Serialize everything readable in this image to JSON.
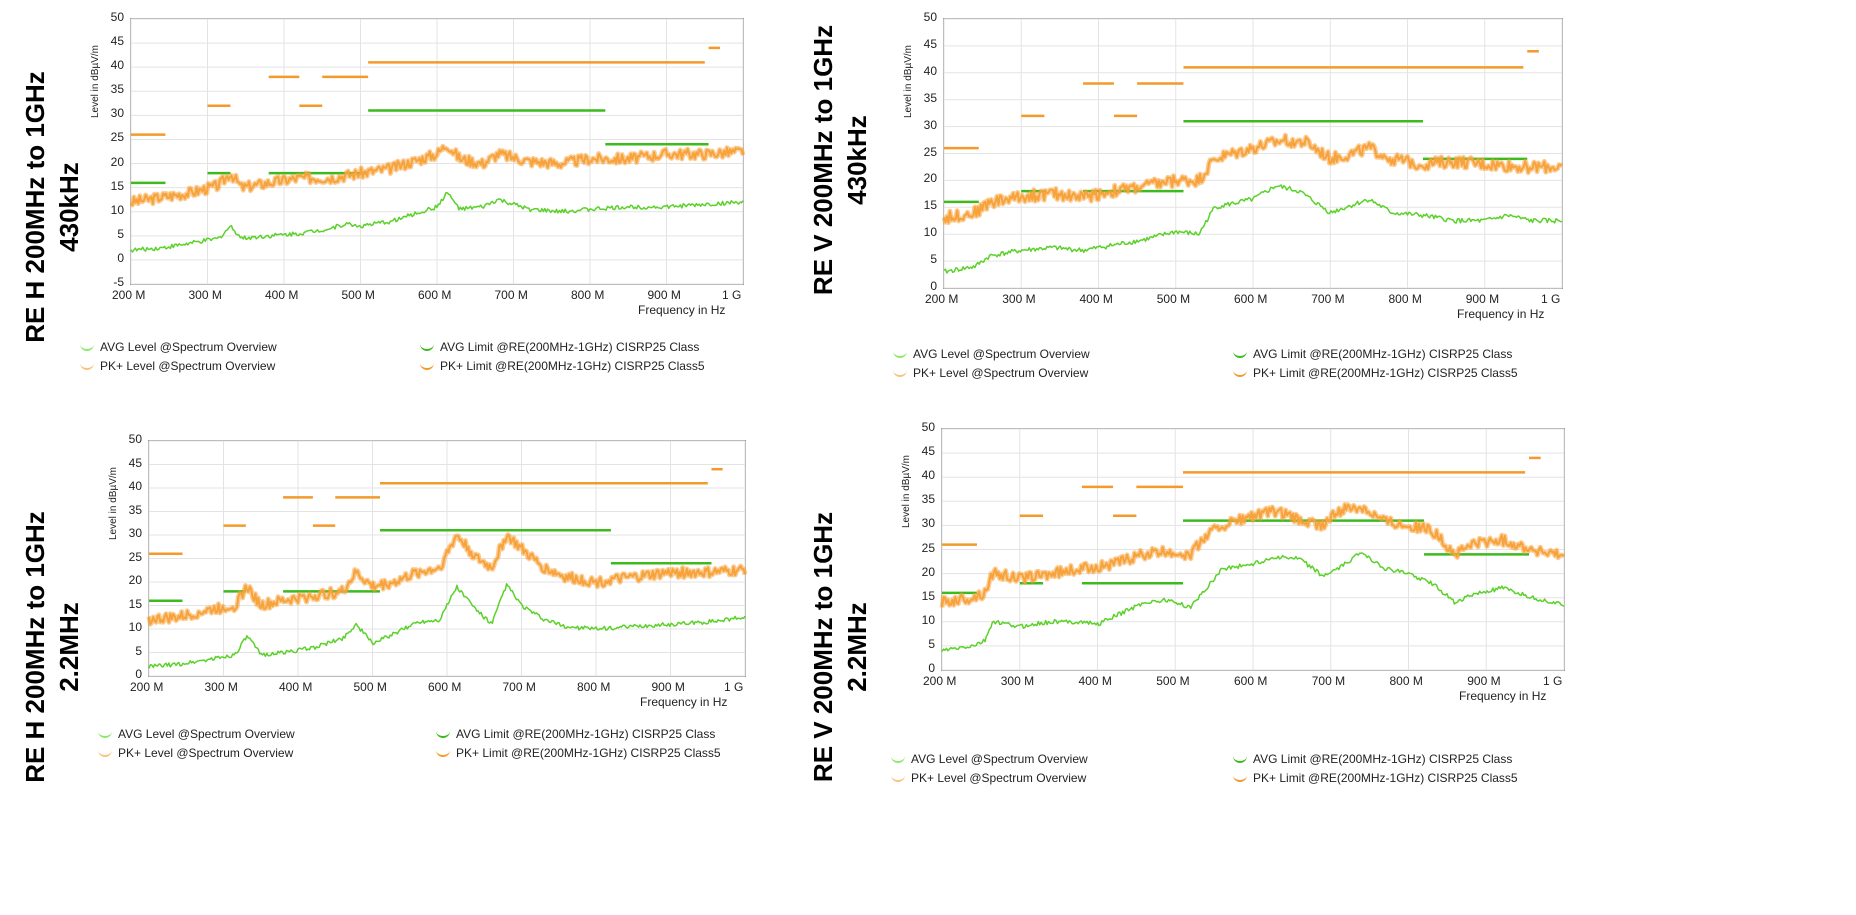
{
  "chart_data": [
    {
      "type": "line",
      "panel_title": [
        "RE H 200MHz to 1GHz",
        "430kHz"
      ],
      "ylabel": "Level in dBµV/m",
      "xlabel": "Frequency in Hz",
      "ylim": [
        -5,
        50
      ],
      "yticks": [
        "-5",
        "0",
        "5",
        "10",
        "15",
        "20",
        "25",
        "30",
        "35",
        "40",
        "45",
        "50"
      ],
      "xlim": [
        200,
        1000
      ],
      "xticks": [
        "200 M",
        "300 M",
        "400 M",
        "500 M",
        "600 M",
        "700 M",
        "800 M",
        "900 M",
        "1 G"
      ],
      "legend": [
        "AVG Level @Spectrum Overview",
        "PK+ Level @Spectrum Overview",
        "AVG Limit @RE(200MHz-1GHz) CISRP25 Class",
        "PK+ Limit @RE(200MHz-1GHz) CISRP25 Class5"
      ],
      "series": [
        {
          "name": "PK+ Level @Spectrum Overview",
          "color": "#f7a23b",
          "x": [
            200,
            240,
            280,
            315,
            330,
            345,
            380,
            420,
            460,
            500,
            540,
            580,
            600,
            613,
            630,
            660,
            680,
            720,
            760,
            800,
            850,
            900,
            950,
            1000
          ],
          "y": [
            12,
            13,
            14,
            15.5,
            18,
            15,
            16,
            17,
            17,
            18,
            19,
            21,
            22,
            24,
            21,
            20,
            22,
            20.5,
            20,
            21,
            21,
            22,
            22,
            22.5
          ]
        },
        {
          "name": "AVG Level @Spectrum Overview",
          "color": "#5bd12a",
          "x": [
            200,
            240,
            280,
            315,
            330,
            345,
            380,
            420,
            460,
            480,
            500,
            540,
            580,
            600,
            613,
            630,
            660,
            680,
            720,
            760,
            800,
            850,
            900,
            950,
            1000
          ],
          "y": [
            2,
            2.5,
            3.5,
            4.5,
            7,
            4.5,
            5,
            5.5,
            6.5,
            7.5,
            7,
            8,
            10,
            11,
            14,
            10.5,
            11,
            12.5,
            10.5,
            10,
            10.5,
            11,
            11,
            11.5,
            12
          ]
        },
        {
          "name": "PK+ Limit @RE(200MHz-1GHz) CISRP25 Class5",
          "color": "#f39a2a",
          "segments": [
            [
              200,
              245,
              26
            ],
            [
              300,
              330,
              32
            ],
            [
              380,
              420,
              38
            ],
            [
              420,
              450,
              32
            ],
            [
              450,
              510,
              38
            ],
            [
              510,
              950,
              41
            ],
            [
              955,
              970,
              44
            ]
          ]
        },
        {
          "name": "AVG Limit @RE(200MHz-1GHz) CISRP25 Class",
          "color": "#3cba1e",
          "segments": [
            [
              200,
              245,
              16
            ],
            [
              300,
              330,
              18
            ],
            [
              380,
              510,
              18
            ],
            [
              510,
              820,
              31
            ],
            [
              820,
              955,
              24
            ]
          ]
        }
      ]
    },
    {
      "type": "line",
      "panel_title": [
        "RE V 200MHz to 1GHz",
        "430kHz"
      ],
      "ylabel": "Level in dBµV/m",
      "xlabel": "Frequency in Hz",
      "ylim": [
        0,
        50
      ],
      "yticks": [
        "0",
        "5",
        "10",
        "15",
        "20",
        "25",
        "30",
        "35",
        "40",
        "45",
        "50"
      ],
      "xlim": [
        200,
        1000
      ],
      "xticks": [
        "200 M",
        "300 M",
        "400 M",
        "500 M",
        "600 M",
        "700 M",
        "800 M",
        "900 M",
        "1 G"
      ],
      "legend": [
        "AVG Level @Spectrum Overview",
        "PK+ Level @Spectrum Overview",
        "AVG Limit @RE(200MHz-1GHz) CISRP25 Class",
        "PK+ Limit @RE(200MHz-1GHz) CISRP25 Class5"
      ],
      "series": [
        {
          "name": "PK+ Level @Spectrum Overview",
          "color": "#f7a23b",
          "x": [
            200,
            240,
            260,
            300,
            340,
            380,
            400,
            420,
            460,
            500,
            530,
            550,
            600,
            640,
            670,
            700,
            730,
            750,
            780,
            820,
            860,
            900,
            950,
            1000
          ],
          "y": [
            13,
            14,
            16,
            17,
            17.5,
            17,
            17.5,
            18,
            19,
            20,
            20,
            24,
            26,
            27.5,
            27,
            24,
            25,
            26,
            24,
            23,
            23.5,
            23,
            22.5,
            22.5
          ]
        },
        {
          "name": "AVG Level @Spectrum Overview",
          "color": "#5bd12a",
          "x": [
            200,
            240,
            260,
            300,
            340,
            380,
            400,
            420,
            460,
            500,
            530,
            550,
            600,
            630,
            660,
            700,
            730,
            750,
            780,
            820,
            860,
            900,
            930,
            960,
            1000
          ],
          "y": [
            3,
            4,
            6,
            7,
            7.5,
            7,
            7.5,
            8,
            9,
            10.5,
            10,
            15,
            16.5,
            19,
            18,
            14,
            15.5,
            16.5,
            14,
            13.5,
            12.5,
            12.5,
            13.5,
            12.5,
            12.5
          ]
        },
        {
          "name": "PK+ Limit @RE(200MHz-1GHz) CISRP25 Class5",
          "color": "#f39a2a",
          "segments": [
            [
              200,
              245,
              26
            ],
            [
              300,
              330,
              32
            ],
            [
              380,
              420,
              38
            ],
            [
              420,
              450,
              32
            ],
            [
              450,
              510,
              38
            ],
            [
              510,
              950,
              41
            ],
            [
              955,
              970,
              44
            ]
          ]
        },
        {
          "name": "AVG Limit @RE(200MHz-1GHz) CISRP25 Class",
          "color": "#3cba1e",
          "segments": [
            [
              200,
              245,
              16
            ],
            [
              300,
              330,
              18
            ],
            [
              380,
              510,
              18
            ],
            [
              510,
              820,
              31
            ],
            [
              820,
              955,
              24
            ]
          ]
        }
      ]
    },
    {
      "type": "line",
      "panel_title": [
        "RE H 200MHz to 1GHz",
        "2.2MHz"
      ],
      "ylabel": "Level in dBµV/m",
      "xlabel": "Frequency in Hz",
      "ylim": [
        0,
        50
      ],
      "yticks": [
        "0",
        "5",
        "10",
        "15",
        "20",
        "25",
        "30",
        "35",
        "40",
        "45",
        "50"
      ],
      "xlim": [
        200,
        1000
      ],
      "xticks": [
        "200 M",
        "300 M",
        "400 M",
        "500 M",
        "600 M",
        "700 M",
        "800 M",
        "900 M",
        "1 G"
      ],
      "legend": [
        "AVG Level @Spectrum Overview",
        "PK+ Level @Spectrum Overview",
        "AVG Limit @RE(200MHz-1GHz) CISRP25 Class",
        "PK+ Limit @RE(200MHz-1GHz) CISRP25 Class5"
      ],
      "series": [
        {
          "name": "PK+ Level @Spectrum Overview",
          "color": "#f7a23b",
          "x": [
            200,
            240,
            280,
            315,
            332,
            350,
            380,
            420,
            460,
            478,
            500,
            530,
            560,
            590,
            613,
            640,
            660,
            680,
            700,
            730,
            760,
            800,
            850,
            900,
            950,
            1000
          ],
          "y": [
            12,
            12.5,
            14,
            15,
            19,
            15,
            16,
            17,
            18,
            22,
            19,
            20,
            22,
            23,
            30,
            25,
            23,
            30,
            27,
            23,
            21,
            20,
            21,
            22,
            22,
            22.5
          ]
        },
        {
          "name": "AVG Level @Spectrum Overview",
          "color": "#5bd12a",
          "x": [
            200,
            240,
            280,
            315,
            332,
            350,
            380,
            420,
            460,
            478,
            500,
            530,
            560,
            590,
            613,
            640,
            660,
            680,
            700,
            730,
            760,
            800,
            850,
            900,
            950,
            1000
          ],
          "y": [
            2,
            2.5,
            3.5,
            4.5,
            8.5,
            4.5,
            5,
            6,
            8,
            11,
            7,
            9,
            11.5,
            12,
            19,
            14,
            11,
            19.5,
            15,
            12,
            10.5,
            10,
            10.5,
            11,
            11.5,
            12.5
          ]
        },
        {
          "name": "PK+ Limit @RE(200MHz-1GHz) CISRP25 Class5",
          "color": "#f39a2a",
          "segments": [
            [
              200,
              245,
              26
            ],
            [
              300,
              330,
              32
            ],
            [
              380,
              420,
              38
            ],
            [
              420,
              450,
              32
            ],
            [
              450,
              510,
              38
            ],
            [
              510,
              950,
              41
            ],
            [
              955,
              970,
              44
            ]
          ]
        },
        {
          "name": "AVG Limit @RE(200MHz-1GHz) CISRP25 Class",
          "color": "#3cba1e",
          "segments": [
            [
              200,
              245,
              16
            ],
            [
              300,
              330,
              18
            ],
            [
              380,
              510,
              18
            ],
            [
              510,
              820,
              31
            ],
            [
              820,
              955,
              24
            ]
          ]
        }
      ]
    },
    {
      "type": "line",
      "panel_title": [
        "RE V 200MHz to 1GHz",
        "2.2MHz"
      ],
      "ylabel": "Level in dBµV/m",
      "xlabel": "Frequency in Hz",
      "ylim": [
        0,
        50
      ],
      "yticks": [
        "0",
        "5",
        "10",
        "15",
        "20",
        "25",
        "30",
        "35",
        "40",
        "45",
        "50"
      ],
      "xlim": [
        200,
        1000
      ],
      "xticks": [
        "200 M",
        "300 M",
        "400 M",
        "500 M",
        "600 M",
        "700 M",
        "800 M",
        "900 M",
        "1 G"
      ],
      "legend": [
        "AVG Level @Spectrum Overview",
        "PK+ Level @Spectrum Overview",
        "AVG Limit @RE(200MHz-1GHz) CISRP25 Class",
        "PK+ Limit @RE(200MHz-1GHz) CISRP25 Class5"
      ],
      "series": [
        {
          "name": "PK+ Level @Spectrum Overview",
          "color": "#f7a23b",
          "x": [
            200,
            240,
            255,
            265,
            300,
            340,
            380,
            420,
            460,
            490,
            520,
            540,
            560,
            600,
            630,
            660,
            690,
            710,
            740,
            770,
            800,
            830,
            860,
            880,
            920,
            960,
            1000
          ],
          "y": [
            14,
            15,
            16,
            20,
            19,
            20,
            21,
            22,
            24,
            24.5,
            24,
            28,
            30,
            32,
            33,
            31,
            30,
            33,
            34,
            31,
            30,
            29,
            24,
            26,
            27,
            25,
            23.5
          ]
        },
        {
          "name": "AVG Level @Spectrum Overview",
          "color": "#5bd12a",
          "x": [
            200,
            240,
            255,
            265,
            300,
            340,
            380,
            400,
            420,
            460,
            490,
            520,
            540,
            560,
            600,
            630,
            660,
            690,
            710,
            740,
            770,
            800,
            830,
            860,
            880,
            920,
            960,
            1000
          ],
          "y": [
            4,
            5,
            6,
            10,
            9,
            10,
            10,
            9.5,
            11,
            14,
            14.5,
            13,
            17,
            21,
            22,
            23.5,
            23,
            19.5,
            21,
            24.5,
            21,
            20,
            18,
            14,
            15.5,
            17,
            15,
            13.5
          ]
        },
        {
          "name": "PK+ Limit @RE(200MHz-1GHz) CISRP25 Class5",
          "color": "#f39a2a",
          "segments": [
            [
              200,
              245,
              26
            ],
            [
              300,
              330,
              32
            ],
            [
              380,
              420,
              38
            ],
            [
              420,
              450,
              32
            ],
            [
              450,
              510,
              38
            ],
            [
              510,
              950,
              41
            ],
            [
              955,
              970,
              44
            ]
          ]
        },
        {
          "name": "AVG Limit @RE(200MHz-1GHz) CISRP25 Class",
          "color": "#3cba1e",
          "segments": [
            [
              200,
              245,
              16
            ],
            [
              300,
              330,
              18
            ],
            [
              380,
              510,
              18
            ],
            [
              510,
              820,
              31
            ],
            [
              820,
              955,
              24
            ]
          ]
        }
      ]
    }
  ]
}
